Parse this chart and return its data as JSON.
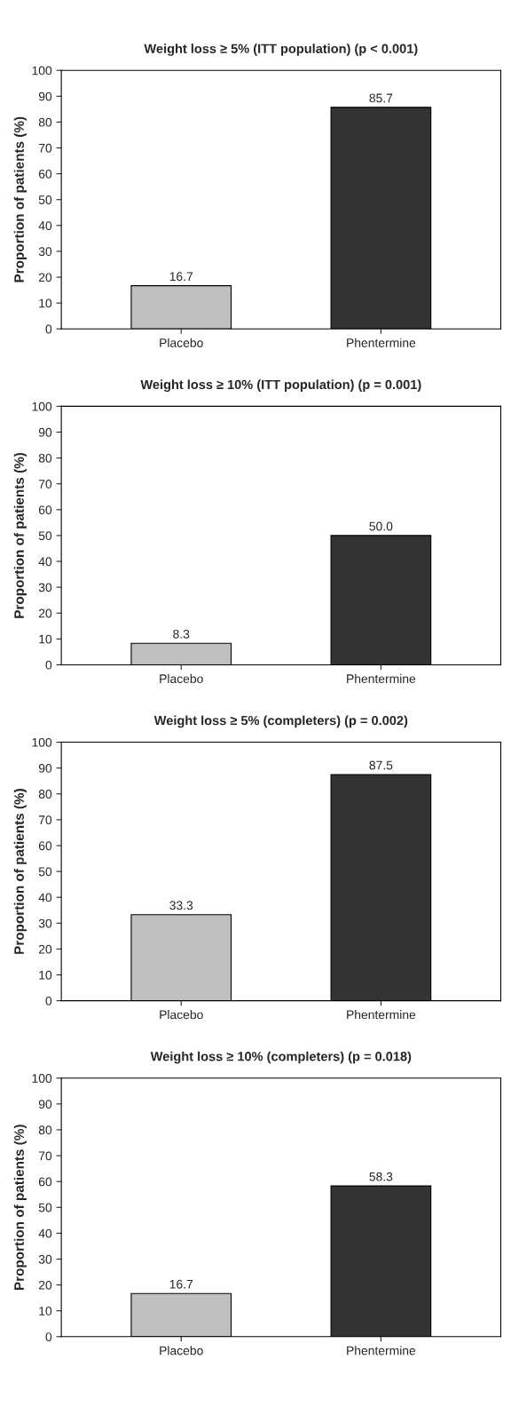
{
  "chart_data": [
    {
      "type": "bar",
      "title": "Weight loss ≥ 5% (ITT population) (p < 0.001)",
      "ylabel": "Proportion of patients (%)",
      "categories": [
        "Placebo",
        "Phentermine"
      ],
      "values": [
        16.7,
        85.7
      ],
      "colors": [
        "#c0c0c0",
        "#333333"
      ],
      "ylim": [
        0,
        100
      ],
      "yticks": [
        0,
        10,
        20,
        30,
        40,
        50,
        60,
        70,
        80,
        90,
        100
      ],
      "data_labels": true,
      "grid": false,
      "legend": false
    },
    {
      "type": "bar",
      "title": "Weight loss ≥ 10% (ITT population) (p = 0.001)",
      "ylabel": "Proportion of patients (%)",
      "categories": [
        "Placebo",
        "Phentermine"
      ],
      "values": [
        8.3,
        50.0
      ],
      "value_labels": [
        "8.3",
        "50.0"
      ],
      "colors": [
        "#c0c0c0",
        "#333333"
      ],
      "ylim": [
        0,
        100
      ],
      "yticks": [
        0,
        10,
        20,
        30,
        40,
        50,
        60,
        70,
        80,
        90,
        100
      ],
      "grid": false,
      "legend": false
    },
    {
      "type": "bar",
      "title": "Weight loss ≥ 5% (completers) (p = 0.002)",
      "ylabel": "Proportion of patients (%)",
      "categories": [
        "Placebo",
        "Phentermine"
      ],
      "values": [
        33.3,
        87.5
      ],
      "colors": [
        "#c0c0c0",
        "#333333"
      ],
      "ylim": [
        0,
        100
      ],
      "yticks": [
        0,
        10,
        20,
        30,
        40,
        50,
        60,
        70,
        80,
        90,
        100
      ],
      "data_labels": true,
      "grid": false,
      "legend": false
    },
    {
      "type": "bar",
      "title": "Weight loss ≥ 10% (completers) (p = 0.018)",
      "ylabel": "Proportion of patients (%)",
      "categories": [
        "Placebo",
        "Phentermine"
      ],
      "values": [
        16.7,
        58.3
      ],
      "colors": [
        "#c0c0c0",
        "#333333"
      ],
      "ylim": [
        0,
        100
      ],
      "yticks": [
        0,
        10,
        20,
        30,
        40,
        50,
        60,
        70,
        80,
        90,
        100
      ],
      "data_labels": true,
      "grid": false,
      "legend": false
    }
  ]
}
